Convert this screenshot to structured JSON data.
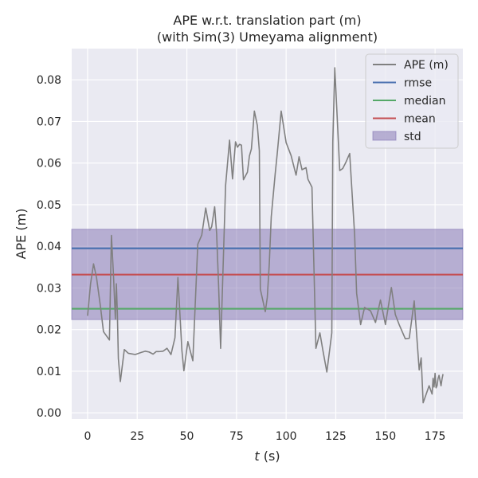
{
  "chart_data": {
    "type": "line",
    "title_lines": [
      "APE w.r.t. translation part (m)",
      "(with Sim(3) Umeyama alignment)"
    ],
    "xlabel_var": "t",
    "xlabel_unit": " (s)",
    "ylabel": "APE (m)",
    "xlim": [
      -8,
      189
    ],
    "ylim": [
      -0.0015,
      0.0875
    ],
    "xticks": [
      0,
      25,
      50,
      75,
      100,
      125,
      150,
      175
    ],
    "xtick_labels": [
      "0",
      "25",
      "50",
      "75",
      "100",
      "125",
      "150",
      "175"
    ],
    "yticks": [
      0.0,
      0.01,
      0.02,
      0.03,
      0.04,
      0.05,
      0.06,
      0.07,
      0.08
    ],
    "ytick_labels": [
      "0.00",
      "0.01",
      "0.02",
      "0.03",
      "0.04",
      "0.05",
      "0.06",
      "0.07",
      "0.08"
    ],
    "grid": true,
    "legend_position": "top-right",
    "colors": {
      "background": "#eaeaf2",
      "grid": "#ffffff",
      "ape": "#808080",
      "rmse": "#4c72b0",
      "median": "#55a868",
      "mean": "#c44e52",
      "std": "#8172b2"
    },
    "stats": {
      "rmse": 0.0395,
      "median": 0.025,
      "mean": 0.0332,
      "std_low": 0.0224,
      "std_high": 0.0441
    },
    "legend": [
      {
        "label": "APE (m)",
        "kind": "line",
        "color_key": "ape"
      },
      {
        "label": "rmse",
        "kind": "line",
        "color_key": "rmse"
      },
      {
        "label": "median",
        "kind": "line",
        "color_key": "median"
      },
      {
        "label": "mean",
        "kind": "line",
        "color_key": "mean"
      },
      {
        "label": "std",
        "kind": "patch",
        "color_key": "std"
      }
    ],
    "series": [
      {
        "name": "APE (m)",
        "x": [
          0,
          1.5,
          3,
          4.5,
          6.5,
          8,
          11,
          12,
          13,
          14,
          14.5,
          15,
          15.5,
          16.5,
          18.5,
          20.5,
          24,
          27,
          29,
          31,
          33,
          34.5,
          36,
          38,
          40,
          42,
          44,
          45.5,
          47.5,
          48.5,
          50.5,
          53,
          55.5,
          57.5,
          59.5,
          61.5,
          62.5,
          64,
          65,
          66,
          67,
          69.5,
          71.5,
          73,
          74.5,
          75.5,
          76.5,
          77.5,
          78.5,
          80.5,
          81.5,
          82.5,
          84,
          85.5,
          86.5,
          87,
          89.5,
          90.5,
          91.5,
          92.5,
          94.5,
          95.5,
          97.5,
          100,
          102.5,
          105,
          106.5,
          108,
          110,
          111,
          113,
          115,
          117,
          118.5,
          120.5,
          123,
          123.5,
          124.5,
          127,
          128.5,
          130,
          132,
          134.5,
          135.5,
          137.5,
          139.5,
          142.5,
          145,
          147.5,
          150,
          153,
          155,
          157,
          160,
          162,
          164.5,
          167,
          168,
          169,
          172,
          173.5,
          174,
          174.5,
          175,
          175.5,
          176,
          176.5,
          177,
          177.5,
          178,
          178.5,
          179
        ],
        "values": [
          0.0233,
          0.031,
          0.0358,
          0.0325,
          0.0255,
          0.0195,
          0.0175,
          0.0426,
          0.0335,
          0.0225,
          0.031,
          0.024,
          0.013,
          0.0075,
          0.0152,
          0.0143,
          0.014,
          0.0145,
          0.0148,
          0.0146,
          0.0141,
          0.0147,
          0.0147,
          0.0148,
          0.0155,
          0.014,
          0.018,
          0.0325,
          0.015,
          0.0101,
          0.0171,
          0.0125,
          0.0405,
          0.0427,
          0.0492,
          0.0438,
          0.0447,
          0.0495,
          0.043,
          0.0303,
          0.0155,
          0.0546,
          0.0655,
          0.0562,
          0.0651,
          0.0638,
          0.0645,
          0.0643,
          0.056,
          0.0578,
          0.0617,
          0.0634,
          0.0725,
          0.069,
          0.063,
          0.0297,
          0.0243,
          0.0277,
          0.0357,
          0.0471,
          0.0575,
          0.0622,
          0.0725,
          0.0649,
          0.0618,
          0.0571,
          0.0615,
          0.0584,
          0.0589,
          0.0561,
          0.0542,
          0.0155,
          0.0192,
          0.015,
          0.0098,
          0.0192,
          0.0651,
          0.0829,
          0.0582,
          0.0587,
          0.0601,
          0.0623,
          0.0427,
          0.0287,
          0.0212,
          0.0253,
          0.0245,
          0.0217,
          0.0271,
          0.0212,
          0.0301,
          0.0236,
          0.0211,
          0.0178,
          0.0179,
          0.0269,
          0.0103,
          0.0132,
          0.0024,
          0.0065,
          0.0045,
          0.0083,
          0.0062,
          0.0095,
          0.006,
          0.0065,
          0.0082,
          0.009,
          0.0078,
          0.0065,
          0.0081,
          0.0093
        ]
      }
    ]
  }
}
